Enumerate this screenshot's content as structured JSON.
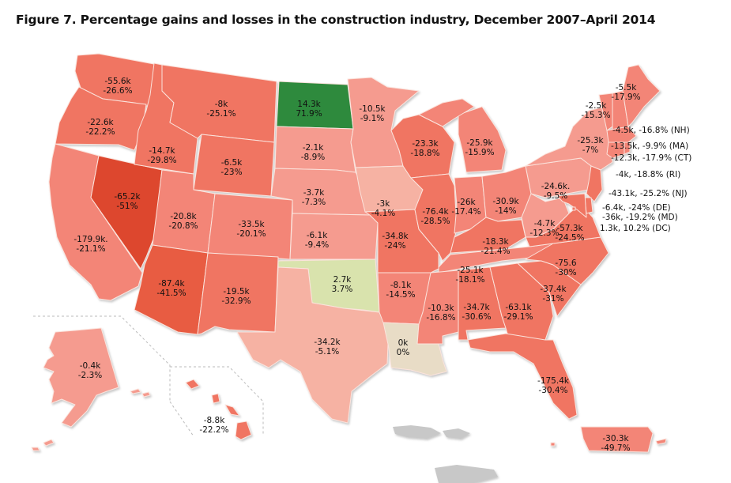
{
  "title": "Figure 7. Percentage gains and losses in the construction industry, December 2007–April 2014",
  "colors": {
    "strong_loss": "#dd472e",
    "heavy_loss": "#e85c43",
    "loss": "#f07462",
    "moderate_loss": "#f38577",
    "mild_loss": "#f59b8f",
    "slight_loss": "#f6b2a3",
    "neutral": "#e8dcc6",
    "slight_gain": "#d9e3ad",
    "large_gain": "#2f8a3e",
    "territory_gray": "#c8c8c8"
  },
  "states": [
    {
      "code": "WA",
      "change": "-55.6k",
      "pct": "-26.6%"
    },
    {
      "code": "OR",
      "change": "-22.6k",
      "pct": "-22.2%"
    },
    {
      "code": "CA",
      "change": "-179.9k.",
      "pct": "-21.1%"
    },
    {
      "code": "NV",
      "change": "-65.2k",
      "pct": "-51%"
    },
    {
      "code": "ID",
      "change": "-14.7k",
      "pct": "-29.8%"
    },
    {
      "code": "MT",
      "change": "-8k",
      "pct": "-25.1%"
    },
    {
      "code": "WY",
      "change": "-6.5k",
      "pct": "-23%"
    },
    {
      "code": "UT",
      "change": "-20.8k",
      "pct": "-20.8%"
    },
    {
      "code": "AZ",
      "change": "-87.4k",
      "pct": "-41.5%"
    },
    {
      "code": "CO",
      "change": "-33.5k",
      "pct": "-20.1%"
    },
    {
      "code": "NM",
      "change": "-19.5k",
      "pct": "-32.9%"
    },
    {
      "code": "ND",
      "change": "14.3k",
      "pct": "71.9%"
    },
    {
      "code": "SD",
      "change": "-2.1k",
      "pct": "-8.9%"
    },
    {
      "code": "NE",
      "change": "-3.7k",
      "pct": "-7.3%"
    },
    {
      "code": "KS",
      "change": "-6.1k",
      "pct": "-9.4%"
    },
    {
      "code": "OK",
      "change": "2.7k",
      "pct": "3.7%"
    },
    {
      "code": "TX",
      "change": "-34.2k",
      "pct": "-5.1%"
    },
    {
      "code": "MN",
      "change": "-10.5k",
      "pct": "-9.1%"
    },
    {
      "code": "IA",
      "change": "-3k",
      "pct": "-4.1%"
    },
    {
      "code": "MO",
      "change": "-34.8k",
      "pct": "-24%"
    },
    {
      "code": "AR",
      "change": "-8.1k",
      "pct": "-14.5%"
    },
    {
      "code": "LA",
      "change": "0k",
      "pct": "0%"
    },
    {
      "code": "WI",
      "change": "-23.3k",
      "pct": "-18.8%"
    },
    {
      "code": "IL",
      "change": "-76.4k",
      "pct": "-28.5%"
    },
    {
      "code": "MI",
      "change": "-25.9k",
      "pct": "-15.9%"
    },
    {
      "code": "IN",
      "change": "-26k",
      "pct": "-17.4%"
    },
    {
      "code": "OH",
      "change": "-30.9k",
      "pct": "-14%"
    },
    {
      "code": "KY",
      "change": "-18.3k",
      "pct": "-21.4%"
    },
    {
      "code": "TN",
      "change": "-25.1k",
      "pct": "-18.1%"
    },
    {
      "code": "MS",
      "change": "-10.3k",
      "pct": "-16.8%"
    },
    {
      "code": "AL",
      "change": "-34.7k",
      "pct": "-30.6%"
    },
    {
      "code": "GA",
      "change": "-63.1k",
      "pct": "-29.1%"
    },
    {
      "code": "FL",
      "change": "-175.4k",
      "pct": "-30.4%"
    },
    {
      "code": "SC",
      "change": "-37.4k",
      "pct": "-31%"
    },
    {
      "code": "NC",
      "change": "-75.6",
      "pct": "-30%"
    },
    {
      "code": "VA",
      "change": "-57.3k",
      "pct": "-24.5%"
    },
    {
      "code": "WV",
      "change": "-4.7k",
      "pct": "-12.3%"
    },
    {
      "code": "PA",
      "change": "-24.6k.",
      "pct": "-9.5%"
    },
    {
      "code": "NY",
      "change": "-25.3k",
      "pct": "-7%"
    },
    {
      "code": "VT",
      "change": "-2.5k",
      "pct": "-15.3%"
    },
    {
      "code": "ME",
      "change": "-5.5k",
      "pct": "-17.9%"
    },
    {
      "code": "AK",
      "change": "-0.4k",
      "pct": "-2.3%"
    },
    {
      "code": "HI",
      "change": "-8.8k",
      "pct": "-22.2%"
    },
    {
      "code": "PR",
      "change": "-30.3k",
      "pct": "-49.7%"
    }
  ],
  "side_labels": [
    {
      "code": "NH",
      "text": "-4.5k, -16.8% (NH)"
    },
    {
      "code": "MA",
      "text": "-13.5k, -9.9% (MA)"
    },
    {
      "code": "CT",
      "text": "-12.3k, -17.9% (CT)"
    },
    {
      "code": "RI",
      "text": "-4k, -18.8% (RI)"
    },
    {
      "code": "NJ",
      "text": "-43.1k, -25.2% (NJ)"
    },
    {
      "code": "DE",
      "text": "-6.4k, -24% (DE)"
    },
    {
      "code": "MD",
      "text": "-36k, -19.2% (MD)"
    },
    {
      "code": "DC",
      "text": "1.3k, 10.2% (DC)"
    }
  ]
}
